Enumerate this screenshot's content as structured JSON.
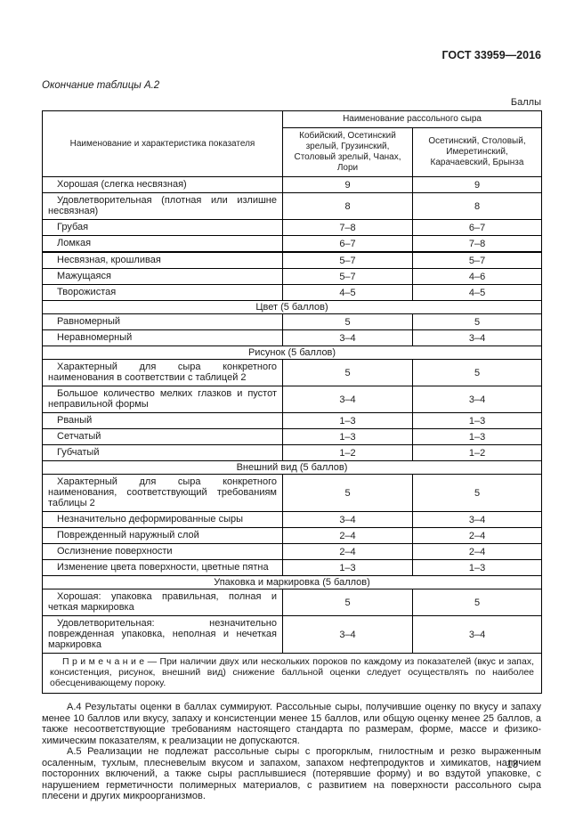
{
  "page": {
    "doc_code": "ГОСТ 33959—2016",
    "table_caption": "Окончание таблицы  А.2",
    "units_label": "Баллы",
    "page_number": "13"
  },
  "table": {
    "col1_header": "Наименование и характеристика показателя",
    "group_header": "Наименование рассольного сыра",
    "col2_header": "Кобийский, Осетинский зрелый, Грузинский, Столовый зрелый, Чанах, Лори",
    "col3_header": "Осетинский, Столовый, Имеретинский, Карачаевский, Брынза",
    "rows": [
      {
        "type": "row",
        "label": "Хорошая (слегка несвязная)",
        "v1": "9",
        "v2": "9"
      },
      {
        "type": "row",
        "label": "Удовлетворительная (плотная или излишне несвязная)",
        "v1": "8",
        "v2": "8"
      },
      {
        "type": "row",
        "label": "Грубая",
        "v1": "7–8",
        "v2": "6–7"
      },
      {
        "type": "row",
        "label": "Ломкая",
        "v1": "6–7",
        "v2": "7–8"
      },
      {
        "type": "row",
        "label": "Несвязная, крошливая",
        "v1": "5–7",
        "v2": "5–7",
        "thick_top": true
      },
      {
        "type": "row",
        "label": "Мажущаяся",
        "v1": "5–7",
        "v2": "4–6"
      },
      {
        "type": "row",
        "label": "Творожистая",
        "v1": "4–5",
        "v2": "4–5"
      },
      {
        "type": "section",
        "label": "Цвет (5 баллов)"
      },
      {
        "type": "row",
        "label": "Равномерный",
        "v1": "5",
        "v2": "5"
      },
      {
        "type": "row",
        "label": "Неравномерный",
        "v1": "3–4",
        "v2": "3–4"
      },
      {
        "type": "section",
        "label": "Рисунок (5 баллов)"
      },
      {
        "type": "row",
        "label": "Характерный для сыра конкретного наименования в соответствии с таблицей 2",
        "v1": "5",
        "v2": "5"
      },
      {
        "type": "row",
        "label": "Большое количество мелких глазков и пустот неправильной формы",
        "v1": "3–4",
        "v2": "3–4"
      },
      {
        "type": "row",
        "label": "Рваный",
        "v1": "1–3",
        "v2": "1–3"
      },
      {
        "type": "row",
        "label": "Сетчатый",
        "v1": "1–3",
        "v2": "1–3"
      },
      {
        "type": "row",
        "label": "Губчатый",
        "v1": "1–2",
        "v2": "1–2"
      },
      {
        "type": "section",
        "label": "Внешний вид (5 баллов)"
      },
      {
        "type": "row",
        "label": "Характерный для сыра конкретного наименования, соответствующий требованиям таблицы 2",
        "v1": "5",
        "v2": "5"
      },
      {
        "type": "row",
        "label": "Незначительно деформированные сыры",
        "v1": "3–4",
        "v2": "3–4"
      },
      {
        "type": "row",
        "label": "Поврежденный наружный слой",
        "v1": "2–4",
        "v2": "2–4"
      },
      {
        "type": "row",
        "label": "Ослизнение поверхности",
        "v1": "2–4",
        "v2": "2–4"
      },
      {
        "type": "row",
        "label": "Изменение цвета поверхности, цветные пятна",
        "v1": "1–3",
        "v2": "1–3"
      },
      {
        "type": "section",
        "label": "Упаковка и маркировка (5 баллов)"
      },
      {
        "type": "row",
        "label": "Хорошая: упаковка правильная,  полная и четкая маркировка",
        "v1": "5",
        "v2": "5"
      },
      {
        "type": "row",
        "label": "Удовлетворительная: незначительно поврежденная упаковка, неполная и нечеткая маркировка",
        "v1": "3–4",
        "v2": "3–4"
      },
      {
        "type": "note",
        "label": "П р и м е ч а н и е — При наличии двух или нескольких пороков по каждому из показателей (вкус и запах, консистенция, рисунок, внешний вид) снижение балльной оценки следует осуществлять по наиболее обесценивающему пороку."
      }
    ]
  },
  "paragraphs": [
    "А.4 Результаты оценки в баллах суммируют. Рассольные сыры, получившие оценку по вкусу и запаху менее 10 баллов или вкусу, запаху и консистенции менее 15 баллов, или общую оценку менее 25 баллов, а также несоответствующие требованиям настоящего стандарта по размерам, форме, массе и физико-химическим показателям, к реализации не допускаются.",
    "А.5 Реализации не подлежат рассольные сыры с прогорклым, гнилостным и резко выраженным осаленным, тухлым, плесневелым вкусом и запахом, запахом нефтепродуктов и химикатов, наличием посторонних включений, а также сыры расплывшиеся (потерявшие форму) и во вздутой упаковке, с нарушением герметичности полимерных материалов, с развитием на поверхности рассольного сыра плесени и других микроорганизмов."
  ]
}
